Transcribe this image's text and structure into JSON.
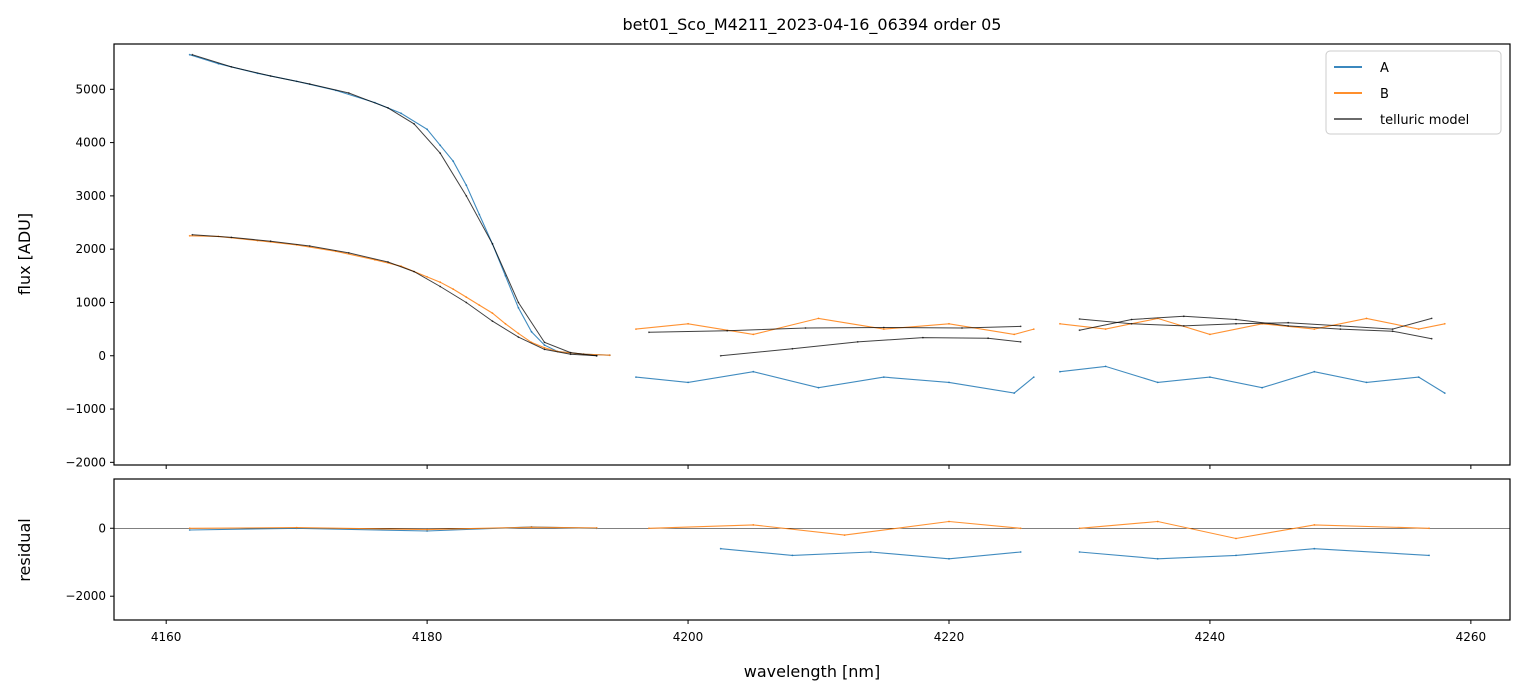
{
  "chart_data": [
    {
      "type": "line",
      "title": "bet01_Sco_M4211_2023-04-16_06394  order 05",
      "xlabel": "",
      "ylabel": "flux [ADU]",
      "xlim": [
        4156,
        4263
      ],
      "ylim": [
        -2050,
        5850
      ],
      "xticks": [
        4160,
        4180,
        4200,
        4220,
        4240,
        4260
      ],
      "yticks": [
        -2000,
        -1000,
        0,
        1000,
        2000,
        3000,
        4000,
        5000
      ],
      "grid": false,
      "legend_position": "top-right",
      "series": [
        {
          "name": "A",
          "color": "#1f77b4",
          "segments": [
            {
              "x": [
                4161.8,
                4164,
                4167,
                4170,
                4173,
                4176,
                4178,
                4180,
                4181,
                4182,
                4183,
                4184,
                4185,
                4186,
                4187,
                4188,
                4189,
                4190,
                4192,
                4194
              ],
              "y": [
                5650,
                5480,
                5300,
                5150,
                4980,
                4750,
                4550,
                4250,
                3950,
                3650,
                3200,
                2650,
                2100,
                1500,
                900,
                450,
                200,
                80,
                30,
                10
              ]
            },
            {
              "x": [
                4196,
                4200,
                4205,
                4210,
                4215,
                4220,
                4225,
                4226.5
              ],
              "y": [
                -400,
                -500,
                -300,
                -600,
                -400,
                -500,
                -700,
                -400
              ]
            },
            {
              "x": [
                4228.5,
                4232,
                4236,
                4240,
                4244,
                4248,
                4252,
                4256,
                4258
              ],
              "y": [
                -300,
                -200,
                -500,
                -400,
                -600,
                -300,
                -500,
                -400,
                -700
              ]
            }
          ]
        },
        {
          "name": "B",
          "color": "#ff7f0e",
          "segments": [
            {
              "x": [
                4161.8,
                4164,
                4167,
                4170,
                4173,
                4176,
                4178,
                4180,
                4181,
                4182,
                4183,
                4184,
                4185,
                4186,
                4187,
                4188,
                4189,
                4190,
                4192,
                4194
              ],
              "y": [
                2250,
                2240,
                2160,
                2080,
                1960,
                1800,
                1680,
                1480,
                1380,
                1250,
                1100,
                950,
                800,
                600,
                420,
                250,
                150,
                80,
                30,
                10
              ]
            },
            {
              "x": [
                4196,
                4200,
                4205,
                4210,
                4215,
                4220,
                4225,
                4226.5
              ],
              "y": [
                500,
                600,
                400,
                700,
                500,
                600,
                400,
                500
              ]
            },
            {
              "x": [
                4228.5,
                4232,
                4236,
                4240,
                4244,
                4248,
                4252,
                4256,
                4258
              ],
              "y": [
                600,
                500,
                700,
                400,
                600,
                500,
                700,
                500,
                600
              ]
            }
          ]
        },
        {
          "name": "telluric model",
          "color": "#000000",
          "segments": [
            {
              "x": [
                4162,
                4165,
                4168,
                4171,
                4174,
                4177,
                4179,
                4181,
                4183,
                4185,
                4187,
                4189,
                4191,
                4193
              ],
              "y": [
                5650,
                5420,
                5250,
                5100,
                4930,
                4650,
                4350,
                3800,
                3000,
                2100,
                1000,
                250,
                60,
                0
              ]
            },
            {
              "x": [
                4162,
                4165,
                4168,
                4171,
                4174,
                4177,
                4179,
                4181,
                4183,
                4185,
                4187,
                4189,
                4191,
                4193
              ],
              "y": [
                2270,
                2220,
                2150,
                2060,
                1930,
                1760,
                1580,
                1300,
                1000,
                650,
                350,
                120,
                30,
                0
              ]
            },
            {
              "x": [
                4197,
                4203,
                4209,
                4215,
                4221,
                4225.5
              ],
              "y": [
                440,
                470,
                520,
                530,
                520,
                550
              ]
            },
            {
              "x": [
                4202.5,
                4208,
                4213,
                4218,
                4223,
                4225.5
              ],
              "y": [
                0,
                130,
                260,
                340,
                330,
                260
              ]
            },
            {
              "x": [
                4230,
                4234,
                4238,
                4242,
                4246,
                4250,
                4254,
                4257
              ],
              "y": [
                690,
                600,
                560,
                600,
                620,
                560,
                500,
                700
              ]
            },
            {
              "x": [
                4230,
                4234,
                4238,
                4242,
                4246,
                4250,
                4254,
                4257
              ],
              "y": [
                480,
                680,
                740,
                680,
                560,
                500,
                460,
                320
              ]
            }
          ]
        }
      ]
    },
    {
      "type": "line",
      "title": "",
      "xlabel": "wavelength [nm]",
      "ylabel": "residual",
      "xlim": [
        4156,
        4263
      ],
      "ylim": [
        -2700,
        1450
      ],
      "xticks": [
        4160,
        4180,
        4200,
        4220,
        4240,
        4260
      ],
      "yticks": [
        -2000,
        0
      ],
      "grid": false,
      "zero_line": true,
      "series": [
        {
          "name": "A",
          "color": "#1f77b4",
          "segments": [
            {
              "x": [
                4161.8,
                4170,
                4180,
                4188,
                4193
              ],
              "y": [
                -50,
                0,
                -80,
                40,
                0
              ]
            },
            {
              "x": [
                4202.5,
                4208,
                4214,
                4220,
                4225.5
              ],
              "y": [
                -600,
                -800,
                -700,
                -900,
                -700
              ]
            },
            {
              "x": [
                4230,
                4236,
                4242,
                4248,
                4256.8
              ],
              "y": [
                -700,
                -900,
                -800,
                -600,
                -800
              ]
            }
          ]
        },
        {
          "name": "B",
          "color": "#ff7f0e",
          "segments": [
            {
              "x": [
                4161.8,
                4170,
                4180,
                4188,
                4193
              ],
              "y": [
                0,
                20,
                -40,
                30,
                10
              ]
            },
            {
              "x": [
                4197,
                4205,
                4212,
                4220,
                4225.5
              ],
              "y": [
                0,
                100,
                -200,
                200,
                0
              ]
            },
            {
              "x": [
                4230,
                4236,
                4242,
                4248,
                4256.8
              ],
              "y": [
                0,
                200,
                -300,
                100,
                0
              ]
            }
          ]
        }
      ]
    }
  ]
}
